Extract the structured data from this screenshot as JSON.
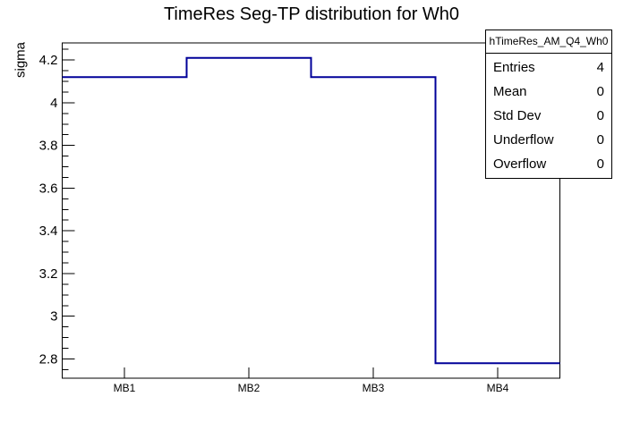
{
  "chart_data": {
    "type": "line",
    "style": "step-histogram",
    "title": "TimeRes Seg-TP distribution for Wh0",
    "xlabel": "",
    "ylabel": "sigma",
    "categories": [
      "MB1",
      "MB2",
      "MB3",
      "MB4"
    ],
    "values": [
      4.12,
      4.21,
      4.12,
      2.78
    ],
    "ylim": [
      2.71,
      4.28
    ],
    "yticks": [
      {
        "v": 2.8,
        "label": "2.8"
      },
      {
        "v": 3.0,
        "label": "3"
      },
      {
        "v": 3.2,
        "label": "3.2"
      },
      {
        "v": 3.4,
        "label": "3.4"
      },
      {
        "v": 3.6,
        "label": "3.6"
      },
      {
        "v": 3.8,
        "label": "3.8"
      },
      {
        "v": 4.0,
        "label": "4"
      },
      {
        "v": 4.2,
        "label": "4.2"
      }
    ],
    "minor_tick_step": 0.05,
    "line_color": "#000099",
    "frame_color": "#000000",
    "grid": false,
    "legend": false
  },
  "stats_box": {
    "header": "hTimeRes_AM_Q4_Wh0",
    "rows": [
      {
        "label": "Entries",
        "value": "4"
      },
      {
        "label": "Mean",
        "value": "0"
      },
      {
        "label": "Std Dev",
        "value": "0"
      },
      {
        "label": "Underflow",
        "value": "0"
      },
      {
        "label": "Overflow",
        "value": "0"
      }
    ]
  }
}
